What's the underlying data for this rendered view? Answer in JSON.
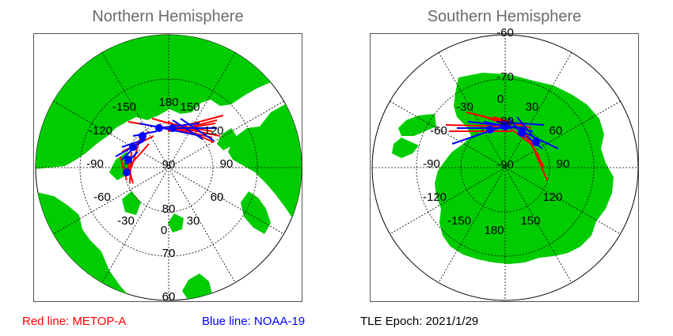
{
  "north": {
    "title": "Northern Hemisphere",
    "lon_labels": [
      "180",
      "150",
      "-150",
      "120",
      "-120",
      "90",
      "-90",
      "60",
      "-60",
      "30",
      "-30",
      "0"
    ],
    "lat_labels": [
      "90",
      "80",
      "70",
      "60"
    ]
  },
  "south": {
    "title": "Southern Hemisphere",
    "lon_labels": [
      "0",
      "30",
      "-30",
      "60",
      "-60",
      "90",
      "-90",
      "120",
      "-120",
      "150",
      "-150",
      "180"
    ],
    "lat_labels": [
      "-60",
      "-70",
      "-80",
      "-90"
    ]
  },
  "legend": {
    "red_label": "Red line: METOP-A",
    "blue_label": "Blue line: NOAA-19",
    "tle_label": "TLE Epoch: 2021/1/29"
  },
  "colors": {
    "land": "#00cc00",
    "red_line": "#ff0000",
    "blue_line": "#0000ff",
    "title_gray": "#6b6b6b"
  }
}
